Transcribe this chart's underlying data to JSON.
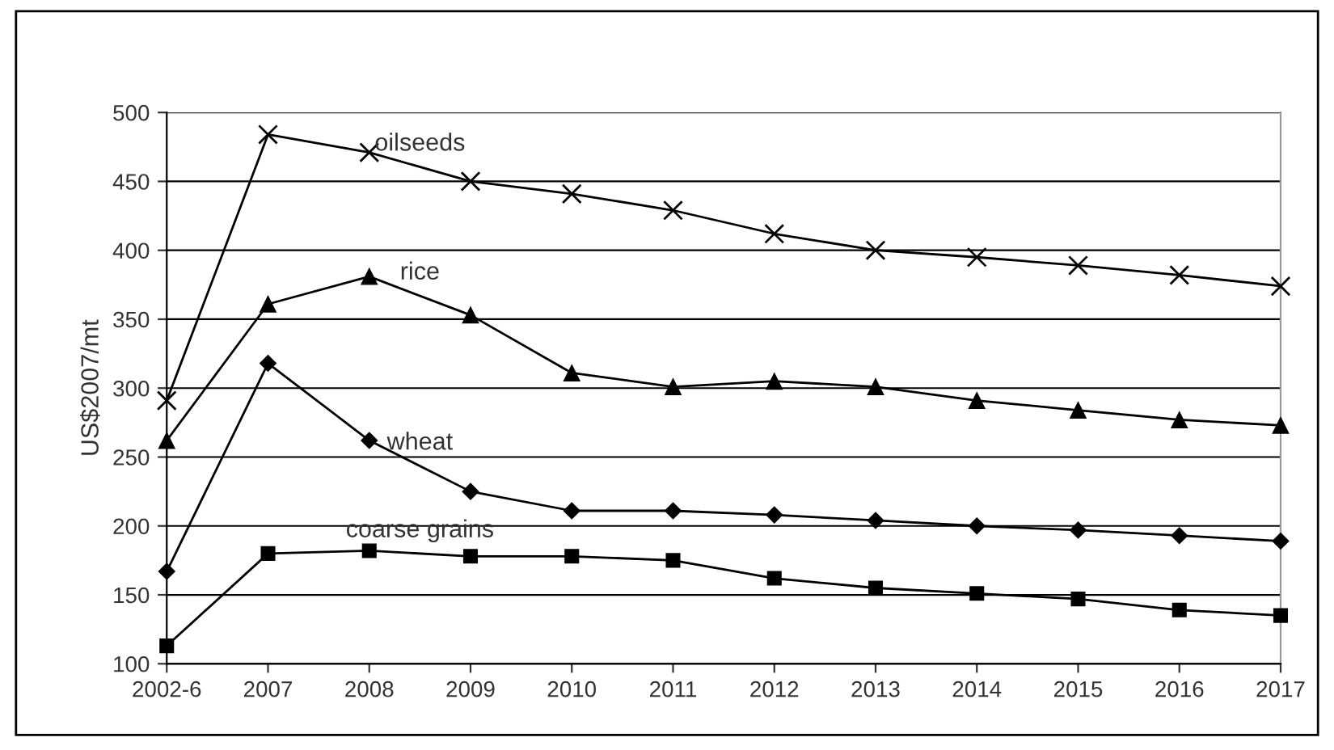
{
  "chart_data": {
    "type": "line",
    "ylabel": "US$2007/mt",
    "categories": [
      "2002-6",
      "2007",
      "2008",
      "2009",
      "2010",
      "2011",
      "2012",
      "2013",
      "2014",
      "2015",
      "2016",
      "2017"
    ],
    "series": [
      {
        "name": "oilseeds",
        "color": "#000000",
        "marker": "cross",
        "values": [
          291,
          484,
          471,
          450,
          441,
          429,
          412,
          400,
          395,
          389,
          382,
          374
        ]
      },
      {
        "name": "rice",
        "color": "#000000",
        "marker": "triangle",
        "values": [
          262,
          361,
          381,
          353,
          311,
          301,
          305,
          301,
          291,
          284,
          277,
          273
        ]
      },
      {
        "name": "wheat",
        "color": "#000000",
        "marker": "diamond",
        "values": [
          167,
          318,
          262,
          225,
          211,
          211,
          208,
          204,
          200,
          197,
          193,
          189
        ]
      },
      {
        "name": "coarse grains",
        "color": "#000000",
        "marker": "square",
        "values": [
          113,
          180,
          182,
          178,
          178,
          175,
          162,
          155,
          151,
          147,
          139,
          135
        ]
      }
    ],
    "ylim": [
      100,
      500
    ],
    "yticks": [
      100,
      150,
      200,
      250,
      300,
      350,
      400,
      450,
      500
    ],
    "grid": "y",
    "line_style": "solid",
    "legend": false
  }
}
